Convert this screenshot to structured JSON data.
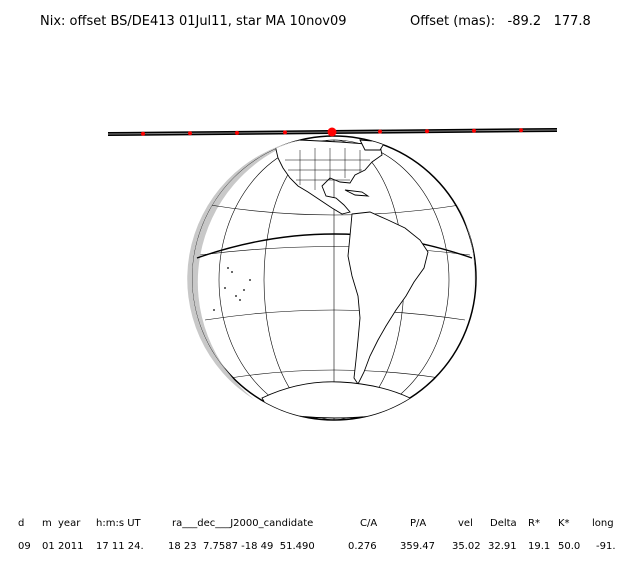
{
  "title": "Nix: offset BS/DE413 01Jul11, star MA 10nov09",
  "offset": {
    "label": "Offset (mas):",
    "x": "-89.2",
    "y": "177.8"
  },
  "table": {
    "headers": [
      "d",
      "m",
      "year",
      "h:m:s UT",
      "ra___dec___J2000_candidate",
      "C/A",
      "P/A",
      "vel",
      "Delta",
      "R*",
      "K*",
      "long"
    ],
    "row": [
      "09",
      "01",
      "2011",
      "17 11 24.",
      "18 23  7.7587 -18 49  51.490",
      "0.276",
      "359.47",
      "35.02",
      "32.91",
      "19.1",
      "50.0",
      "-91."
    ]
  },
  "track": {
    "color": "#000000",
    "marker_color": "#ff0000"
  }
}
